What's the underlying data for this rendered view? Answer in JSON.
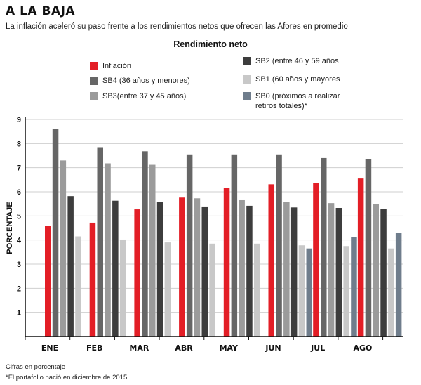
{
  "header": {
    "title": "A LA BAJA",
    "subtitle": "La inflación aceleró su paso frente a los rendimientos netos que ofrecen las Afores en promedio"
  },
  "legend": {
    "title": "Rendimiento neto",
    "items": [
      {
        "label": "Inflación",
        "color": "#e31e26"
      },
      {
        "label": "SB4 (36 años y menores)",
        "color": "#666666"
      },
      {
        "label": "SB3(entre 37 y 45 años)",
        "color": "#9b9b9b"
      },
      {
        "label": "SB2 (entre 46 y 59 años",
        "color": "#3d3d3d"
      },
      {
        "label": "SB1 (60 años y mayores",
        "color": "#c8c8c8"
      },
      {
        "label": "SB0 (próximos a realizar\nretiros totales)*",
        "color": "#6f7d8c"
      }
    ]
  },
  "footnotes": {
    "units": "Cifras en porcentaje",
    "note": "*El portafolio nació en diciembre de 2015"
  },
  "chart_data": {
    "type": "bar",
    "title": "Rendimiento neto",
    "ylabel": "PORCENTAJE",
    "xlabel": "",
    "ylim": [
      0,
      9
    ],
    "yticks": [
      1,
      2,
      3,
      4,
      5,
      6,
      7,
      8,
      9
    ],
    "grid": true,
    "categories": [
      "ENE",
      "FEB",
      "MAR",
      "ABR",
      "MAY",
      "JUN",
      "JUL",
      "AGO"
    ],
    "series": [
      {
        "name": "Inflación",
        "color": "#e31e26",
        "values": [
          4.6,
          4.72,
          5.27,
          5.76,
          6.17,
          6.31,
          6.35,
          6.55
        ]
      },
      {
        "name": "SB4 (36 años y menores)",
        "color": "#666666",
        "values": [
          8.6,
          7.85,
          7.68,
          7.55,
          7.55,
          7.55,
          7.4,
          7.35
        ]
      },
      {
        "name": "SB3(entre 37 y 45 años)",
        "color": "#9b9b9b",
        "values": [
          7.3,
          7.18,
          7.12,
          5.73,
          5.68,
          5.58,
          5.53,
          5.48
        ]
      },
      {
        "name": "SB2 (entre 46 y 59 años",
        "color": "#3d3d3d",
        "values": [
          5.82,
          5.63,
          5.57,
          5.39,
          5.42,
          5.35,
          5.33,
          5.28
        ]
      },
      {
        "name": "SB1 (60 años y mayores",
        "color": "#c8c8c8",
        "values": [
          4.15,
          4.02,
          3.9,
          3.85,
          3.85,
          3.78,
          3.75,
          3.65
        ]
      },
      {
        "name": "SB0 (próximos a realizar retiros totales)*",
        "color": "#6f7d8c",
        "values": [
          null,
          null,
          null,
          null,
          null,
          3.65,
          4.12,
          4.3
        ]
      }
    ]
  }
}
